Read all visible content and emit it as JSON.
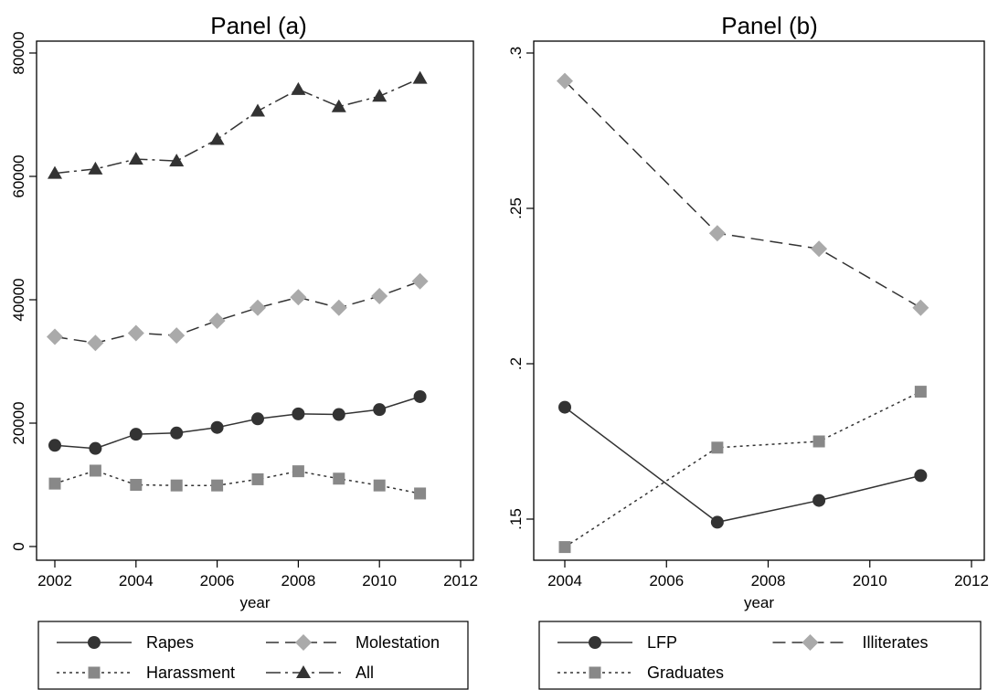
{
  "chart_data": [
    {
      "type": "line",
      "title": "Panel (a)",
      "xlabel": "year",
      "ylabel": "",
      "xlim": [
        2002,
        2012
      ],
      "ylim": [
        0,
        80000
      ],
      "xticks": [
        2002,
        2004,
        2006,
        2008,
        2010,
        2012
      ],
      "yticks": [
        0,
        20000,
        40000,
        60000,
        80000
      ],
      "x": [
        2002,
        2003,
        2004,
        2005,
        2006,
        2007,
        2008,
        2009,
        2010,
        2011
      ],
      "grid": false,
      "legend": "bottom",
      "series": [
        {
          "name": "Rapes",
          "style": "solid",
          "marker": "circle",
          "color": "#333333",
          "values": [
            16400,
            15900,
            18200,
            18400,
            19300,
            20700,
            21500,
            21400,
            22200,
            24300
          ]
        },
        {
          "name": "Molestation",
          "style": "dash",
          "marker": "diamond",
          "color": "#aaaaaa",
          "values": [
            34000,
            33000,
            34600,
            34200,
            36600,
            38700,
            40400,
            38700,
            40600,
            43000
          ]
        },
        {
          "name": "Harassment",
          "style": "dot",
          "marker": "square",
          "color": "#888888",
          "values": [
            10200,
            12300,
            10000,
            9900,
            9900,
            10900,
            12200,
            11000,
            9900,
            8600
          ]
        },
        {
          "name": "All",
          "style": "dashdot",
          "marker": "triangle",
          "color": "#333333",
          "values": [
            60500,
            61200,
            62800,
            62500,
            66000,
            70600,
            74100,
            71300,
            73000,
            75900
          ]
        }
      ]
    },
    {
      "type": "line",
      "title": "Panel (b)",
      "xlabel": "year",
      "ylabel": "",
      "xlim": [
        2004,
        2012
      ],
      "ylim": [
        0.142,
        0.306
      ],
      "xticks": [
        2004,
        2006,
        2008,
        2010,
        2012
      ],
      "yticks": [
        0.15,
        0.2,
        0.25,
        0.3
      ],
      "yticklabels": [
        ".15",
        ".2",
        ".25",
        ".3"
      ],
      "x": [
        2004,
        2007,
        2009,
        2011
      ],
      "grid": false,
      "legend": "bottom",
      "series": [
        {
          "name": "LFP",
          "style": "solid",
          "marker": "circle",
          "color": "#333333",
          "values": [
            0.186,
            0.149,
            0.156,
            0.164
          ]
        },
        {
          "name": "Illiterates",
          "style": "dash",
          "marker": "diamond",
          "color": "#aaaaaa",
          "values": [
            0.291,
            0.242,
            0.237,
            0.218
          ]
        },
        {
          "name": "Graduates",
          "style": "dot",
          "marker": "square",
          "color": "#888888",
          "values": [
            0.141,
            0.173,
            0.175,
            0.191
          ]
        }
      ]
    }
  ]
}
